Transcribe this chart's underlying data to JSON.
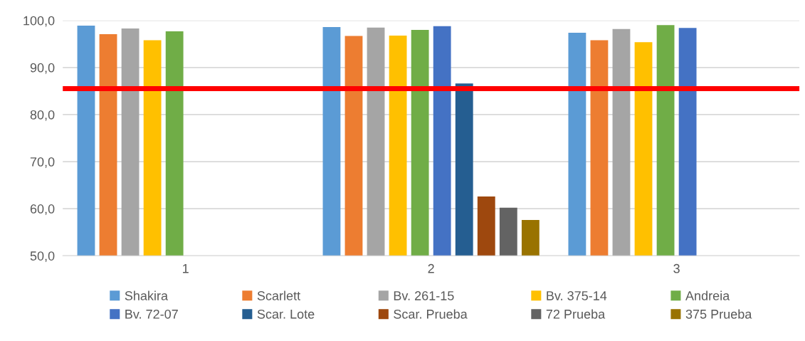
{
  "chart_data": {
    "type": "bar",
    "categories": [
      "1",
      "2",
      "3"
    ],
    "series": [
      {
        "name": "Shakira",
        "color": "#5b9bd5",
        "values": [
          98.9,
          98.6,
          97.4
        ]
      },
      {
        "name": "Scarlett",
        "color": "#ed7d31",
        "values": [
          97.1,
          96.7,
          95.8
        ]
      },
      {
        "name": "Bv. 261-15",
        "color": "#a5a5a5",
        "values": [
          98.3,
          98.5,
          98.2
        ]
      },
      {
        "name": "Bv. 375-14",
        "color": "#ffc000",
        "values": [
          95.8,
          96.8,
          95.4
        ]
      },
      {
        "name": "Andreia",
        "color": "#70ad47",
        "values": [
          97.7,
          98.0,
          99.0
        ]
      },
      {
        "name": "Bv. 72-07",
        "color": "#4472c4",
        "values": [
          null,
          98.8,
          98.4
        ]
      },
      {
        "name": "Scar. Lote",
        "color": "#255e91",
        "values": [
          null,
          86.6,
          null
        ]
      },
      {
        "name": "Scar. Prueba",
        "color": "#9e480e",
        "values": [
          null,
          62.6,
          null
        ]
      },
      {
        "name": "72 Prueba",
        "color": "#636363",
        "values": [
          null,
          60.2,
          null
        ]
      },
      {
        "name": "375 Prueba",
        "color": "#997300",
        "values": [
          null,
          57.6,
          null
        ]
      }
    ],
    "ylim": [
      50,
      100
    ],
    "yticks": [
      {
        "value": 50,
        "label": "50,0"
      },
      {
        "value": 60,
        "label": "60,0"
      },
      {
        "value": 70,
        "label": "70,0"
      },
      {
        "value": 80,
        "label": "80,0"
      },
      {
        "value": 90,
        "label": "90,0"
      },
      {
        "value": 100,
        "label": "100,0"
      }
    ],
    "ref_lines": [
      {
        "axis": "y",
        "value": 85.5,
        "color": "#ff0000",
        "line_style": "solid"
      }
    ],
    "grid": "y",
    "legend": "bottom"
  }
}
